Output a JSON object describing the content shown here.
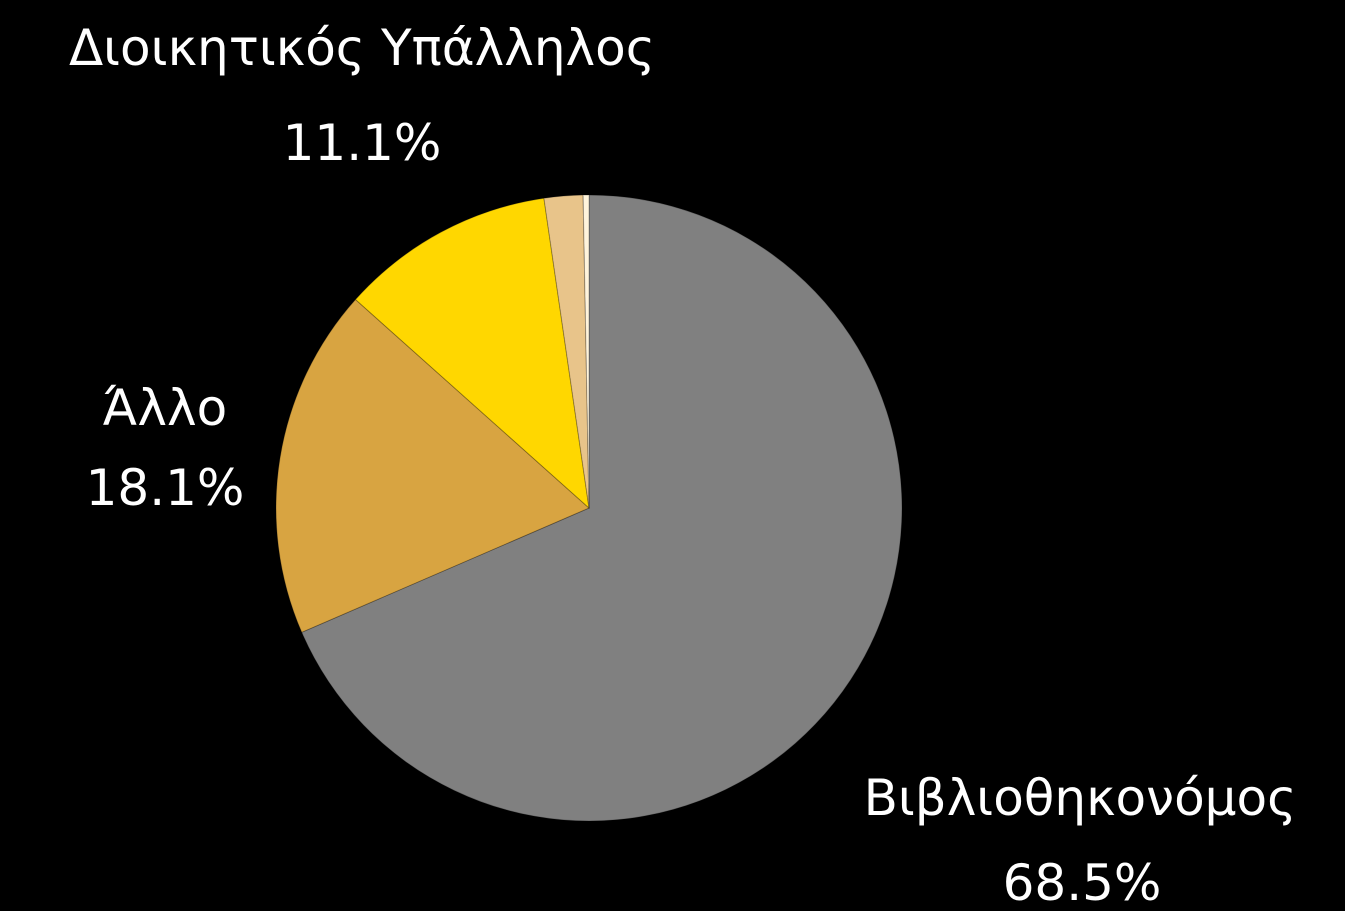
{
  "chart_data": {
    "type": "pie",
    "title": "",
    "slices": [
      {
        "name": "Βιβλιοθηκονόμος",
        "value": 68.5,
        "value_label": "68.5%",
        "color": "#808080",
        "label_shown": true
      },
      {
        "name": "Άλλο",
        "value": 18.1,
        "value_label": "18.1%",
        "color": "#D8A441",
        "label_shown": true
      },
      {
        "name": "Διοικητικός Υπάλληλος",
        "value": 11.1,
        "value_label": "11.1%",
        "color": "#FFD700",
        "label_shown": true
      },
      {
        "name": "",
        "value": 2.0,
        "value_label": "",
        "color": "#E8C48A",
        "label_shown": false
      },
      {
        "name": "",
        "value": 0.3,
        "value_label": "",
        "color": "#FFF4DC",
        "label_shown": false
      }
    ],
    "start_angle_deg": 0,
    "direction": "clockwise",
    "legend": "none",
    "background": "#000000"
  }
}
